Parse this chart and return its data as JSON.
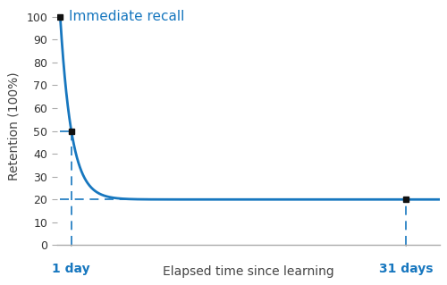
{
  "xlabel": "Elapsed time since learning",
  "ylabel": "Retention (100%)",
  "curve_color": "#1777bf",
  "dashed_color": "#1777bf",
  "point_color": "#111111",
  "background_color": "#ffffff",
  "annotation_text": "Immediate recall",
  "annotation_color": "#1777bf",
  "ylim": [
    0,
    104
  ],
  "yticks": [
    0,
    10,
    20,
    30,
    40,
    50,
    60,
    70,
    80,
    90,
    100
  ],
  "x_day1": 1,
  "x_day31": 31,
  "y_day0": 100,
  "y_day1": 50,
  "y_day31": 20,
  "label_1day": "1 day",
  "label_31days": "31 days",
  "axis_color": "#aaaaaa",
  "tick_label_color": "#333333",
  "xlabel_fontsize": 10,
  "ylabel_fontsize": 10,
  "annotation_fontsize": 11,
  "tick_fontsize": 9,
  "xlim_min": -0.3,
  "xlim_max": 34,
  "curve_a": 80,
  "curve_c": 20,
  "curve_k": 0.9808292530117262
}
